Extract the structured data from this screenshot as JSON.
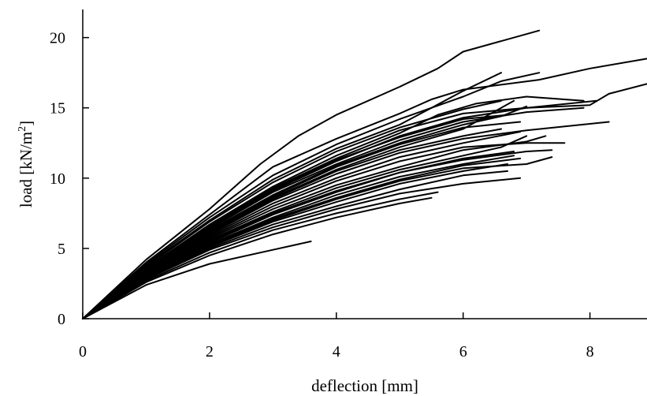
{
  "chart_data": {
    "type": "line",
    "title": "",
    "xlabel": "deflection [mm]",
    "ylabel_main": "load [kN/m",
    "ylabel_sup": "2",
    "ylabel_end": "]",
    "xlim": [
      0,
      8.9
    ],
    "ylim": [
      0,
      22
    ],
    "xticks": [
      0,
      2,
      4,
      6,
      8
    ],
    "yticks": [
      0,
      5,
      10,
      15,
      20
    ],
    "grid": false,
    "legend": "none",
    "line_color": "#000000",
    "series": [
      {
        "points": [
          [
            0,
            0
          ],
          [
            1,
            4.2
          ],
          [
            2,
            7.8
          ],
          [
            2.8,
            11
          ],
          [
            3.4,
            13
          ],
          [
            4,
            14.5
          ],
          [
            5,
            16.5
          ],
          [
            5.6,
            17.8
          ],
          [
            6,
            19
          ],
          [
            7.2,
            20.5
          ]
        ]
      },
      {
        "points": [
          [
            0,
            0
          ],
          [
            1,
            4.0
          ],
          [
            2,
            7.4
          ],
          [
            3,
            10.8
          ],
          [
            4,
            12.8
          ],
          [
            5,
            14.6
          ],
          [
            5.5,
            15.6
          ],
          [
            6,
            16.3
          ],
          [
            7.2,
            17
          ],
          [
            8,
            17.8
          ],
          [
            8.9,
            18.5
          ]
        ]
      },
      {
        "points": [
          [
            0,
            0
          ],
          [
            1,
            3.9
          ],
          [
            2,
            7.2
          ],
          [
            3,
            10.2
          ],
          [
            4,
            12.4
          ],
          [
            5,
            14.2
          ],
          [
            6,
            15.8
          ],
          [
            6.6,
            16.9
          ],
          [
            7.2,
            17.5
          ]
        ]
      },
      {
        "points": [
          [
            0,
            0
          ],
          [
            1,
            3.8
          ],
          [
            2,
            7.0
          ],
          [
            3,
            9.9
          ],
          [
            4,
            12.1
          ],
          [
            5,
            13.8
          ],
          [
            5.5,
            15.0
          ],
          [
            6,
            16.2
          ],
          [
            6.6,
            17.5
          ]
        ]
      },
      {
        "points": [
          [
            0,
            0
          ],
          [
            1,
            3.6
          ],
          [
            2,
            6.7
          ],
          [
            3,
            9.4
          ],
          [
            4,
            11.6
          ],
          [
            5,
            13.4
          ],
          [
            6,
            14.6
          ],
          [
            7,
            15.0
          ],
          [
            8,
            15.2
          ],
          [
            8.3,
            16.0
          ],
          [
            8.9,
            16.7
          ]
        ]
      },
      {
        "points": [
          [
            0,
            0
          ],
          [
            1,
            3.6
          ],
          [
            2,
            6.6
          ],
          [
            3,
            9.3
          ],
          [
            4,
            11.4
          ],
          [
            5,
            13.2
          ],
          [
            5.6,
            14.5
          ],
          [
            6.2,
            15.3
          ],
          [
            7,
            15.8
          ],
          [
            7.9,
            15.5
          ]
        ]
      },
      {
        "points": [
          [
            0,
            0
          ],
          [
            1,
            3.5
          ],
          [
            2,
            6.5
          ],
          [
            3,
            9.1
          ],
          [
            4,
            11.2
          ],
          [
            5,
            13.0
          ],
          [
            6,
            14.3
          ],
          [
            7,
            15.0
          ],
          [
            8.1,
            15.5
          ]
        ]
      },
      {
        "points": [
          [
            0,
            0
          ],
          [
            1,
            3.5
          ],
          [
            2,
            6.4
          ],
          [
            3,
            9.0
          ],
          [
            4,
            11.0
          ],
          [
            5,
            12.7
          ],
          [
            6,
            14.0
          ],
          [
            7,
            14.7
          ],
          [
            7.9,
            15.0
          ]
        ]
      },
      {
        "points": [
          [
            0,
            0
          ],
          [
            1,
            3.5
          ],
          [
            2,
            6.3
          ],
          [
            3,
            8.8
          ],
          [
            4,
            10.9
          ],
          [
            5,
            12.5
          ],
          [
            6,
            13.8
          ],
          [
            6.6,
            14.4
          ],
          [
            7.0,
            15.1
          ]
        ]
      },
      {
        "points": [
          [
            0,
            0
          ],
          [
            1,
            3.4
          ],
          [
            2,
            6.2
          ],
          [
            3,
            8.7
          ],
          [
            4,
            10.8
          ],
          [
            5,
            12.4
          ],
          [
            6,
            13.6
          ],
          [
            6.9,
            14.0
          ]
        ]
      },
      {
        "points": [
          [
            0,
            0
          ],
          [
            1,
            3.4
          ],
          [
            2,
            6.1
          ],
          [
            3,
            8.6
          ],
          [
            4,
            10.6
          ],
          [
            5,
            12.2
          ],
          [
            6,
            13.5
          ],
          [
            6.8,
            15.5
          ]
        ]
      },
      {
        "points": [
          [
            0,
            0
          ],
          [
            1,
            3.3
          ],
          [
            2,
            6.0
          ],
          [
            3,
            8.4
          ],
          [
            4,
            10.3
          ],
          [
            5,
            11.8
          ],
          [
            6,
            12.8
          ],
          [
            7,
            13.4
          ],
          [
            8.3,
            14.0
          ]
        ]
      },
      {
        "points": [
          [
            0,
            0
          ],
          [
            1,
            3.3
          ],
          [
            2,
            5.9
          ],
          [
            3,
            8.2
          ],
          [
            4,
            10.0
          ],
          [
            5,
            11.5
          ],
          [
            6,
            12.5
          ],
          [
            6.9,
            13.3
          ]
        ]
      },
      {
        "points": [
          [
            0,
            0
          ],
          [
            1,
            3.2
          ],
          [
            2,
            5.8
          ],
          [
            3,
            8.0
          ],
          [
            4,
            9.8
          ],
          [
            5,
            11.2
          ],
          [
            6,
            12.2
          ],
          [
            7,
            12.5
          ],
          [
            7.6,
            12.5
          ]
        ]
      },
      {
        "points": [
          [
            0,
            0
          ],
          [
            1,
            3.2
          ],
          [
            2,
            5.7
          ],
          [
            3,
            7.8
          ],
          [
            4,
            9.5
          ],
          [
            5,
            10.8
          ],
          [
            6,
            12.0
          ],
          [
            7,
            12.6
          ],
          [
            7.3,
            13.0
          ]
        ]
      },
      {
        "points": [
          [
            0,
            0
          ],
          [
            1,
            3.1
          ],
          [
            2,
            5.6
          ],
          [
            3,
            7.6
          ],
          [
            4,
            9.3
          ],
          [
            5,
            10.6
          ],
          [
            6,
            11.6
          ],
          [
            6.6,
            12.2
          ],
          [
            7.0,
            13.0
          ]
        ]
      },
      {
        "points": [
          [
            0,
            0
          ],
          [
            1,
            3.0
          ],
          [
            2,
            5.4
          ],
          [
            3,
            7.4
          ],
          [
            4,
            9.0
          ],
          [
            5,
            10.4
          ],
          [
            6,
            11.3
          ],
          [
            7,
            11.9
          ],
          [
            7.4,
            12.0
          ]
        ]
      },
      {
        "points": [
          [
            0,
            0
          ],
          [
            1,
            3.0
          ],
          [
            2,
            5.3
          ],
          [
            3,
            7.2
          ],
          [
            4,
            8.8
          ],
          [
            5,
            10.1
          ],
          [
            6,
            11.0
          ],
          [
            6.8,
            11.6
          ]
        ]
      },
      {
        "points": [
          [
            0,
            0
          ],
          [
            1,
            2.9
          ],
          [
            2,
            5.2
          ],
          [
            3,
            7.0
          ],
          [
            4,
            8.5
          ],
          [
            5,
            9.8
          ],
          [
            6,
            10.7
          ],
          [
            7,
            11.0
          ],
          [
            7.4,
            11.5
          ]
        ]
      },
      {
        "points": [
          [
            0,
            0
          ],
          [
            1,
            2.9
          ],
          [
            2,
            5.1
          ],
          [
            3,
            6.9
          ],
          [
            4,
            8.3
          ],
          [
            5,
            9.6
          ],
          [
            6,
            10.5
          ],
          [
            6.7,
            11.0
          ]
        ]
      },
      {
        "points": [
          [
            0,
            0
          ],
          [
            1,
            2.8
          ],
          [
            2,
            5.0
          ],
          [
            3,
            6.7
          ],
          [
            4,
            8.0
          ],
          [
            5,
            9.2
          ],
          [
            6,
            10.2
          ],
          [
            6.7,
            10.5
          ]
        ]
      },
      {
        "points": [
          [
            0,
            0
          ],
          [
            1,
            2.8
          ],
          [
            2,
            4.9
          ],
          [
            3,
            6.5
          ],
          [
            4,
            7.8
          ],
          [
            5,
            8.9
          ],
          [
            6,
            9.6
          ],
          [
            6.9,
            10.0
          ]
        ]
      },
      {
        "points": [
          [
            0,
            0
          ],
          [
            1,
            2.7
          ],
          [
            2,
            4.7
          ],
          [
            3,
            6.3
          ],
          [
            4,
            7.5
          ],
          [
            5,
            8.5
          ],
          [
            5.6,
            9.0
          ]
        ]
      },
      {
        "points": [
          [
            0,
            0
          ],
          [
            1,
            2.6
          ],
          [
            2,
            4.5
          ],
          [
            3,
            6.0
          ],
          [
            4,
            7.2
          ],
          [
            5,
            8.2
          ],
          [
            5.5,
            8.6
          ]
        ]
      },
      {
        "points": [
          [
            0,
            0
          ],
          [
            1,
            2.4
          ],
          [
            2,
            3.9
          ],
          [
            3,
            4.9
          ],
          [
            3.6,
            5.5
          ]
        ]
      },
      {
        "points": [
          [
            0,
            0
          ],
          [
            1,
            3.7
          ],
          [
            2,
            6.9
          ],
          [
            3,
            9.7
          ],
          [
            4,
            11.9
          ],
          [
            5,
            13.6
          ],
          [
            6,
            14.9
          ],
          [
            6.6,
            15.5
          ]
        ]
      },
      {
        "points": [
          [
            0,
            0
          ],
          [
            1,
            3.6
          ],
          [
            2,
            6.6
          ],
          [
            3,
            9.2
          ],
          [
            4,
            11.3
          ],
          [
            5,
            12.9
          ],
          [
            6,
            14.2
          ],
          [
            6.7,
            14.5
          ]
        ]
      },
      {
        "points": [
          [
            0,
            0
          ],
          [
            1,
            3.3
          ],
          [
            2,
            6.0
          ],
          [
            3,
            8.5
          ],
          [
            4,
            10.5
          ],
          [
            5,
            12.0
          ],
          [
            6,
            13.0
          ],
          [
            6.6,
            13.5
          ]
        ]
      },
      {
        "points": [
          [
            0,
            0
          ],
          [
            1,
            3.1
          ],
          [
            2,
            5.5
          ],
          [
            3,
            7.5
          ],
          [
            4,
            9.1
          ],
          [
            5,
            10.4
          ],
          [
            6,
            11.4
          ],
          [
            6.8,
            11.9
          ]
        ]
      },
      {
        "points": [
          [
            0,
            0
          ],
          [
            1,
            2.9
          ],
          [
            2,
            5.2
          ],
          [
            3,
            7.1
          ],
          [
            4,
            8.6
          ],
          [
            5,
            9.9
          ],
          [
            6,
            10.9
          ],
          [
            6.9,
            11.4
          ]
        ]
      }
    ]
  }
}
